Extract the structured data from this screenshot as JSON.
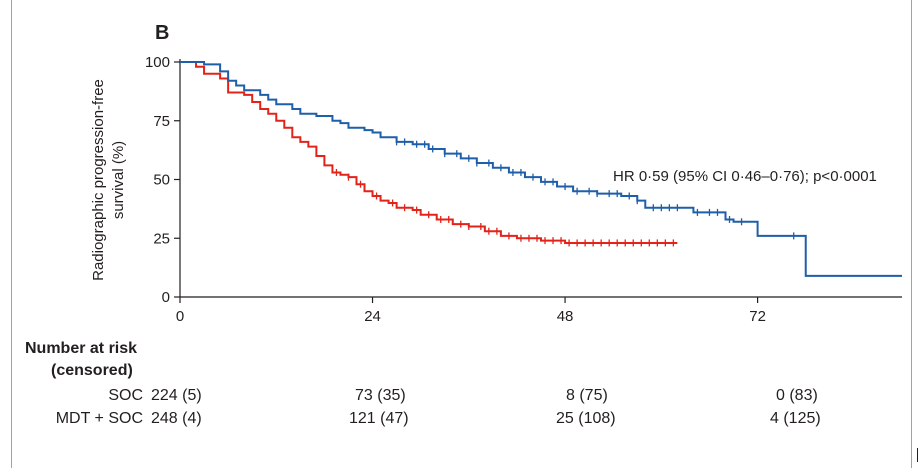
{
  "chart_data": {
    "type": "line",
    "panel_label": "B",
    "title": "",
    "xlabel": "",
    "ylabel_lines": [
      "Radiographic progression-free",
      "survival (%)"
    ],
    "xlim": [
      0,
      90
    ],
    "ylim": [
      0,
      100
    ],
    "xticks": [
      "0",
      "24",
      "48",
      "72"
    ],
    "xtick_values": [
      0,
      24,
      48,
      72
    ],
    "yticks": [
      "0",
      "25",
      "50",
      "75",
      "100"
    ],
    "ytick_values": [
      0,
      25,
      50,
      75,
      100
    ],
    "annotation": "HR 0·59 (95% CI 0·46–0·76); p<0·0001",
    "series": [
      {
        "name": "SOC",
        "color": "#e2231a",
        "steps": [
          [
            0,
            100
          ],
          [
            2,
            98
          ],
          [
            3,
            95
          ],
          [
            5,
            93
          ],
          [
            6,
            87
          ],
          [
            8,
            86
          ],
          [
            9,
            83
          ],
          [
            10,
            80
          ],
          [
            11,
            78
          ],
          [
            12,
            75
          ],
          [
            13,
            72
          ],
          [
            14,
            68
          ],
          [
            15,
            66
          ],
          [
            16,
            64
          ],
          [
            17,
            60
          ],
          [
            18,
            56
          ],
          [
            19,
            53
          ],
          [
            20,
            52
          ],
          [
            21,
            51
          ],
          [
            22,
            48
          ],
          [
            23,
            45
          ],
          [
            24,
            43
          ],
          [
            25,
            41
          ],
          [
            26,
            40
          ],
          [
            27,
            38
          ],
          [
            29,
            37
          ],
          [
            30,
            35
          ],
          [
            32,
            33
          ],
          [
            34,
            31
          ],
          [
            36,
            30
          ],
          [
            38,
            28
          ],
          [
            40,
            26
          ],
          [
            42,
            25
          ],
          [
            45,
            24
          ],
          [
            48,
            23
          ],
          [
            62,
            23
          ]
        ],
        "censor_times": [
          19.5,
          21,
          22.5,
          24.5,
          26.5,
          28,
          29.5,
          31,
          32.5,
          33.5,
          35,
          36,
          37.5,
          38.5,
          39.5,
          41,
          42.5,
          43.5,
          44.5,
          45.5,
          46.5,
          47.5,
          48.5,
          49.5,
          50.5,
          51.5,
          52.5,
          53.5,
          54.5,
          55.5,
          56.5,
          57.5,
          58.5,
          59.5,
          60.5,
          61.5
        ]
      },
      {
        "name": "MDT+SOC",
        "color": "#1f5ea8",
        "steps": [
          [
            0,
            100
          ],
          [
            3,
            99
          ],
          [
            5,
            96
          ],
          [
            6,
            92
          ],
          [
            7,
            90
          ],
          [
            8,
            88
          ],
          [
            10,
            86
          ],
          [
            11,
            84
          ],
          [
            12,
            82
          ],
          [
            14,
            80
          ],
          [
            15,
            78
          ],
          [
            17,
            77
          ],
          [
            19,
            75
          ],
          [
            20,
            74
          ],
          [
            21,
            72
          ],
          [
            23,
            71
          ],
          [
            24,
            70
          ],
          [
            25,
            68
          ],
          [
            27,
            66
          ],
          [
            29,
            65
          ],
          [
            31,
            63
          ],
          [
            33,
            61
          ],
          [
            35,
            59
          ],
          [
            37,
            57
          ],
          [
            39,
            55
          ],
          [
            41,
            53
          ],
          [
            43,
            51
          ],
          [
            45,
            49
          ],
          [
            47,
            47
          ],
          [
            49,
            45
          ],
          [
            52,
            44
          ],
          [
            55,
            43
          ],
          [
            57,
            41
          ],
          [
            58,
            38
          ],
          [
            63,
            38
          ],
          [
            64,
            36
          ],
          [
            68,
            33
          ],
          [
            69,
            32
          ],
          [
            71,
            32
          ],
          [
            72,
            26
          ],
          [
            77,
            26
          ],
          [
            78,
            9
          ],
          [
            90,
            9
          ]
        ],
        "censor_times": [
          27,
          28,
          29.5,
          30.5,
          31.5,
          33,
          34.5,
          36,
          37,
          38.5,
          40,
          41.5,
          42.5,
          44,
          45.5,
          46.5,
          48,
          49.5,
          51,
          52,
          53.5,
          54.5,
          56,
          57,
          59,
          60,
          61,
          62,
          64.5,
          66,
          67,
          68.5,
          70,
          76.5
        ]
      }
    ]
  },
  "risk_table": {
    "title_line1": "Number at risk",
    "title_line2": "(censored)",
    "rows": [
      {
        "label": "SOC",
        "values": [
          "224 (5)",
          "73 (35)",
          "8 (75)",
          "0 (83)"
        ]
      },
      {
        "label": "MDT + SOC",
        "values": [
          "248 (4)",
          "121 (47)",
          "25 (108)",
          "4 (125)"
        ]
      }
    ]
  }
}
